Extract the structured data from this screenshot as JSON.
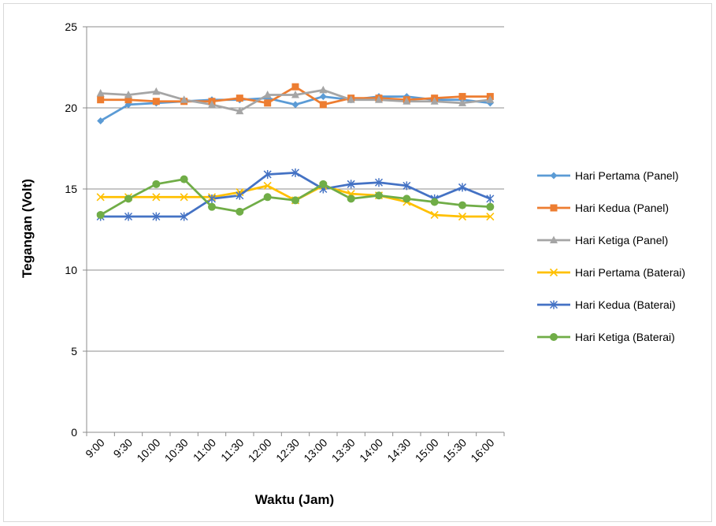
{
  "chart_data": {
    "type": "line",
    "title": "",
    "xlabel": "Waktu (Jam)",
    "ylabel": "Tegangan (Volt)",
    "ylim": [
      0,
      25
    ],
    "yticks": [
      0,
      5,
      10,
      15,
      20,
      25
    ],
    "grid": "horizontal",
    "legend_position": "right",
    "categories": [
      "9:00",
      "9:30",
      "10:00",
      "10:30",
      "11:00",
      "11:30",
      "12:00",
      "12:30",
      "13:00",
      "13:30",
      "14:00",
      "14:30",
      "15:00",
      "15:30",
      "16:00"
    ],
    "series": [
      {
        "name": "Hari Pertama (Panel)",
        "color": "#5b9bd5",
        "marker": "diamond",
        "values": [
          19.2,
          20.2,
          20.3,
          20.4,
          20.5,
          20.5,
          20.6,
          20.2,
          20.7,
          20.5,
          20.7,
          20.7,
          20.5,
          20.5,
          20.3
        ]
      },
      {
        "name": "Hari Kedua (Panel)",
        "color": "#ed7d31",
        "marker": "square",
        "values": [
          20.5,
          20.5,
          20.4,
          20.4,
          20.4,
          20.6,
          20.3,
          21.3,
          20.2,
          20.6,
          20.6,
          20.5,
          20.6,
          20.7,
          20.7
        ]
      },
      {
        "name": "Hari Ketiga (Panel)",
        "color": "#a5a5a5",
        "marker": "triangle",
        "values": [
          20.9,
          20.8,
          21.0,
          20.5,
          20.2,
          19.8,
          20.8,
          20.8,
          21.1,
          20.5,
          20.5,
          20.4,
          20.4,
          20.3,
          20.5
        ]
      },
      {
        "name": "Hari Pertama (Baterai)",
        "color": "#ffc000",
        "marker": "x",
        "values": [
          14.5,
          14.5,
          14.5,
          14.5,
          14.5,
          14.8,
          15.2,
          14.3,
          15.2,
          14.7,
          14.6,
          14.2,
          13.4,
          13.3,
          13.3
        ]
      },
      {
        "name": "Hari Kedua (Baterai)",
        "color": "#4472c4",
        "marker": "star",
        "values": [
          13.3,
          13.3,
          13.3,
          13.3,
          14.4,
          14.6,
          15.9,
          16.0,
          15.0,
          15.3,
          15.4,
          15.2,
          14.4,
          15.1,
          14.4
        ]
      },
      {
        "name": "Hari Ketiga (Baterai)",
        "color": "#70ad47",
        "marker": "circle",
        "values": [
          13.4,
          14.4,
          15.3,
          15.6,
          13.9,
          13.6,
          14.5,
          14.3,
          15.3,
          14.4,
          14.6,
          14.4,
          14.2,
          14.0,
          13.9
        ]
      }
    ]
  }
}
